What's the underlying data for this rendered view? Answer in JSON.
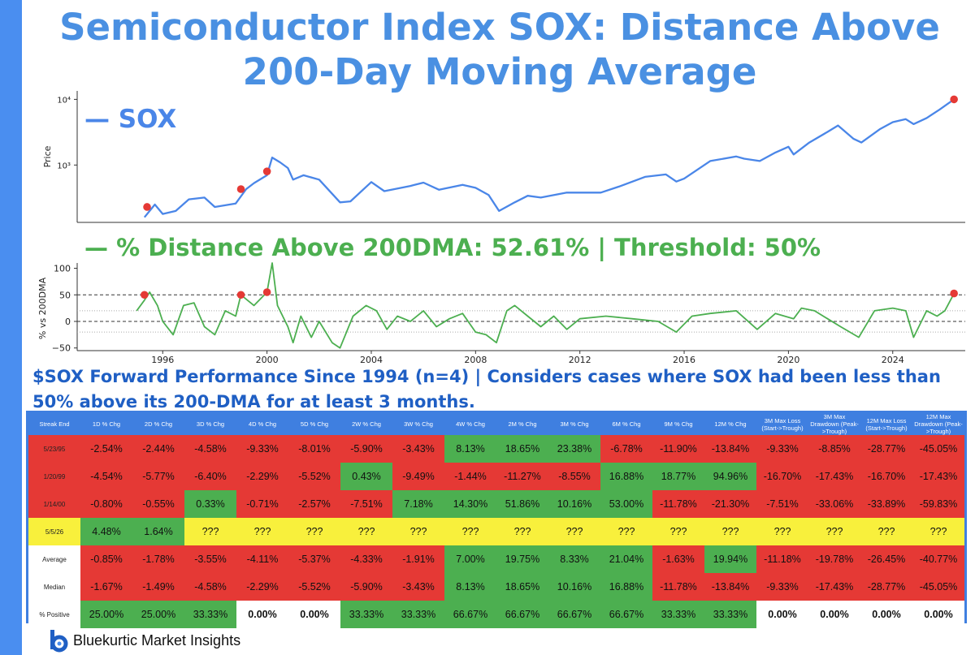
{
  "title": "Semiconductor Index SOX: Distance Above 200-Day Moving Average",
  "chart_data": [
    {
      "type": "line",
      "title": "",
      "ylabel": "Price",
      "yscale": "log",
      "ylim": [
        150,
        12000
      ],
      "ytick_labels": [
        "10³",
        "10⁴"
      ],
      "legend": "— SOX",
      "series": [
        {
          "name": "SOX",
          "color": "#4a86e8",
          "x": [
            1995.3,
            1995.7,
            1996.0,
            1996.5,
            1997.0,
            1997.6,
            1998.0,
            1998.8,
            1999.2,
            1999.5,
            2000.0,
            2000.2,
            2000.5,
            2000.8,
            2001.0,
            2001.4,
            2002.0,
            2002.8,
            2003.2,
            2004.0,
            2004.5,
            2005.5,
            2006.0,
            2006.6,
            2007.5,
            2008.0,
            2008.5,
            2008.9,
            2009.5,
            2010.0,
            2010.5,
            2011.5,
            2012.0,
            2012.8,
            2013.5,
            2014.5,
            2015.3,
            2015.7,
            2016.0,
            2017.0,
            2018.0,
            2018.3,
            2018.9,
            2019.5,
            2020.0,
            2020.2,
            2020.8,
            2021.5,
            2021.9,
            2022.5,
            2022.8,
            2023.5,
            2024.0,
            2024.5,
            2024.8,
            2025.3,
            2025.8,
            2026.35
          ],
          "values": [
            160,
            250,
            180,
            200,
            300,
            320,
            230,
            260,
            430,
            530,
            700,
            1300,
            1100,
            900,
            600,
            700,
            600,
            270,
            280,
            550,
            400,
            480,
            540,
            420,
            500,
            450,
            350,
            200,
            270,
            340,
            320,
            380,
            380,
            380,
            470,
            660,
            720,
            560,
            620,
            1150,
            1350,
            1250,
            1150,
            1550,
            1900,
            1450,
            2200,
            3200,
            4000,
            2500,
            2200,
            3500,
            4500,
            5000,
            4200,
            5200,
            7000,
            10000
          ]
        }
      ],
      "highlight_points": [
        {
          "x": 1995.4,
          "y": 230
        },
        {
          "x": 1999.0,
          "y": 430
        },
        {
          "x": 2000.0,
          "y": 800
        },
        {
          "x": 2026.35,
          "y": 10000
        }
      ]
    },
    {
      "type": "line",
      "title": "",
      "ylabel": "% vs 200DMA",
      "ylim": [
        -55,
        110
      ],
      "ytick_labels": [
        "100",
        "50",
        "0",
        "−50"
      ],
      "xtick_labels": [
        "1996",
        "2000",
        "2004",
        "2008",
        "2012",
        "2016",
        "2020",
        "2024"
      ],
      "legend": "— % Distance Above 200DMA: 52.61% | Threshold: 50%",
      "threshold": 50,
      "series": [
        {
          "name": "% Distance Above 200DMA",
          "color": "#4caf50",
          "x": [
            1995.0,
            1995.3,
            1995.5,
            1995.8,
            1996.0,
            1996.4,
            1996.8,
            1997.2,
            1997.6,
            1998.0,
            1998.4,
            1998.8,
            1999.0,
            1999.5,
            2000.0,
            2000.2,
            2000.4,
            2000.8,
            2001.0,
            2001.3,
            2001.7,
            2002.0,
            2002.5,
            2002.8,
            2003.3,
            2003.8,
            2004.2,
            2004.6,
            2005.0,
            2005.5,
            2006.0,
            2006.5,
            2007.0,
            2007.5,
            2008.0,
            2008.4,
            2008.8,
            2009.2,
            2009.5,
            2010.0,
            2010.5,
            2011.0,
            2011.5,
            2012.0,
            2013.0,
            2014.0,
            2015.0,
            2015.7,
            2016.3,
            2017.0,
            2018.0,
            2018.8,
            2019.5,
            2020.2,
            2020.5,
            2021.0,
            2021.5,
            2022.0,
            2022.7,
            2023.3,
            2024.0,
            2024.5,
            2024.8,
            2025.3,
            2025.7,
            2026.0,
            2026.35
          ],
          "values": [
            20,
            40,
            55,
            30,
            0,
            -25,
            30,
            35,
            -10,
            -25,
            20,
            10,
            50,
            30,
            55,
            110,
            30,
            -10,
            -40,
            10,
            -30,
            0,
            -40,
            -50,
            10,
            30,
            20,
            -15,
            10,
            0,
            20,
            -10,
            5,
            15,
            -20,
            -25,
            -40,
            20,
            30,
            10,
            -10,
            10,
            -15,
            5,
            10,
            5,
            0,
            -20,
            10,
            15,
            20,
            -15,
            15,
            5,
            25,
            20,
            5,
            -10,
            -30,
            20,
            25,
            20,
            -30,
            20,
            10,
            20,
            52.61
          ]
        }
      ],
      "highlight_points": [
        {
          "x": 1995.3,
          "y": 50
        },
        {
          "x": 1999.0,
          "y": 50
        },
        {
          "x": 2000.0,
          "y": 55
        },
        {
          "x": 2026.35,
          "y": 52.61
        }
      ]
    },
    {
      "type": "table",
      "title": "$SOX Forward Performance Since 1994 (n=4) | Considers cases where SOX had been less than 50% above its 200-DMA for at least 3 months.",
      "columns": [
        "Streak End",
        "1D % Chg",
        "2D % Chg",
        "3D % Chg",
        "4D % Chg",
        "5D % Chg",
        "2W % Chg",
        "3W % Chg",
        "4W % Chg",
        "2M % Chg",
        "3M % Chg",
        "6M % Chg",
        "9M % Chg",
        "12M % Chg",
        "3M Max Loss (Start->Trough)",
        "3M Max Drawdown (Peak->Trough)",
        "12M Max Loss (Start->Trough)",
        "12M Max Drawdown (Peak->Trough)"
      ],
      "rows": [
        {
          "label": "5/23/95",
          "cells": [
            {
              "v": "-2.54%",
              "c": "r"
            },
            {
              "v": "-2.44%",
              "c": "r"
            },
            {
              "v": "-4.58%",
              "c": "r"
            },
            {
              "v": "-9.33%",
              "c": "r"
            },
            {
              "v": "-8.01%",
              "c": "r"
            },
            {
              "v": "-5.90%",
              "c": "r"
            },
            {
              "v": "-3.43%",
              "c": "r"
            },
            {
              "v": "8.13%",
              "c": "g"
            },
            {
              "v": "18.65%",
              "c": "g"
            },
            {
              "v": "23.38%",
              "c": "g"
            },
            {
              "v": "-6.78%",
              "c": "r"
            },
            {
              "v": "-11.90%",
              "c": "r"
            },
            {
              "v": "-13.84%",
              "c": "r"
            },
            {
              "v": "-9.33%",
              "c": "r"
            },
            {
              "v": "-8.85%",
              "c": "r"
            },
            {
              "v": "-28.77%",
              "c": "r"
            },
            {
              "v": "-45.05%",
              "c": "r"
            }
          ]
        },
        {
          "label": "1/20/99",
          "cells": [
            {
              "v": "-4.54%",
              "c": "r"
            },
            {
              "v": "-5.77%",
              "c": "r"
            },
            {
              "v": "-6.40%",
              "c": "r"
            },
            {
              "v": "-2.29%",
              "c": "r"
            },
            {
              "v": "-5.52%",
              "c": "r"
            },
            {
              "v": "0.43%",
              "c": "g"
            },
            {
              "v": "-9.49%",
              "c": "r"
            },
            {
              "v": "-1.44%",
              "c": "r"
            },
            {
              "v": "-11.27%",
              "c": "r"
            },
            {
              "v": "-8.55%",
              "c": "r"
            },
            {
              "v": "16.88%",
              "c": "g"
            },
            {
              "v": "18.77%",
              "c": "g"
            },
            {
              "v": "94.96%",
              "c": "g"
            },
            {
              "v": "-16.70%",
              "c": "r"
            },
            {
              "v": "-17.43%",
              "c": "r"
            },
            {
              "v": "-16.70%",
              "c": "r"
            },
            {
              "v": "-17.43%",
              "c": "r"
            }
          ]
        },
        {
          "label": "1/14/00",
          "cells": [
            {
              "v": "-0.80%",
              "c": "r"
            },
            {
              "v": "-0.55%",
              "c": "r"
            },
            {
              "v": "0.33%",
              "c": "g"
            },
            {
              "v": "-0.71%",
              "c": "r"
            },
            {
              "v": "-2.57%",
              "c": "r"
            },
            {
              "v": "-7.51%",
              "c": "r"
            },
            {
              "v": "7.18%",
              "c": "g"
            },
            {
              "v": "14.30%",
              "c": "g"
            },
            {
              "v": "51.86%",
              "c": "g"
            },
            {
              "v": "10.16%",
              "c": "g"
            },
            {
              "v": "53.00%",
              "c": "g"
            },
            {
              "v": "-11.78%",
              "c": "r"
            },
            {
              "v": "-21.30%",
              "c": "r"
            },
            {
              "v": "-7.51%",
              "c": "r"
            },
            {
              "v": "-33.06%",
              "c": "r"
            },
            {
              "v": "-33.89%",
              "c": "r"
            },
            {
              "v": "-59.83%",
              "c": "r"
            }
          ]
        },
        {
          "label": "5/5/26",
          "cells": [
            {
              "v": "4.48%",
              "c": "g"
            },
            {
              "v": "1.64%",
              "c": "g"
            },
            {
              "v": "???",
              "c": "y"
            },
            {
              "v": "???",
              "c": "y"
            },
            {
              "v": "???",
              "c": "y"
            },
            {
              "v": "???",
              "c": "y"
            },
            {
              "v": "???",
              "c": "y"
            },
            {
              "v": "???",
              "c": "y"
            },
            {
              "v": "???",
              "c": "y"
            },
            {
              "v": "???",
              "c": "y"
            },
            {
              "v": "???",
              "c": "y"
            },
            {
              "v": "???",
              "c": "y"
            },
            {
              "v": "???",
              "c": "y"
            },
            {
              "v": "???",
              "c": "y"
            },
            {
              "v": "???",
              "c": "y"
            },
            {
              "v": "???",
              "c": "y"
            },
            {
              "v": "???",
              "c": "y"
            }
          ]
        },
        {
          "label": "Average",
          "cells": [
            {
              "v": "-0.85%",
              "c": "r"
            },
            {
              "v": "-1.78%",
              "c": "r"
            },
            {
              "v": "-3.55%",
              "c": "r"
            },
            {
              "v": "-4.11%",
              "c": "r"
            },
            {
              "v": "-5.37%",
              "c": "r"
            },
            {
              "v": "-4.33%",
              "c": "r"
            },
            {
              "v": "-1.91%",
              "c": "r"
            },
            {
              "v": "7.00%",
              "c": "g"
            },
            {
              "v": "19.75%",
              "c": "g"
            },
            {
              "v": "8.33%",
              "c": "g"
            },
            {
              "v": "21.04%",
              "c": "g"
            },
            {
              "v": "-1.63%",
              "c": "r"
            },
            {
              "v": "19.94%",
              "c": "g"
            },
            {
              "v": "-11.18%",
              "c": "r"
            },
            {
              "v": "-19.78%",
              "c": "r"
            },
            {
              "v": "-26.45%",
              "c": "r"
            },
            {
              "v": "-40.77%",
              "c": "r"
            }
          ]
        },
        {
          "label": "Median",
          "cells": [
            {
              "v": "-1.67%",
              "c": "r"
            },
            {
              "v": "-1.49%",
              "c": "r"
            },
            {
              "v": "-4.58%",
              "c": "r"
            },
            {
              "v": "-2.29%",
              "c": "r"
            },
            {
              "v": "-5.52%",
              "c": "r"
            },
            {
              "v": "-5.90%",
              "c": "r"
            },
            {
              "v": "-3.43%",
              "c": "r"
            },
            {
              "v": "8.13%",
              "c": "g"
            },
            {
              "v": "18.65%",
              "c": "g"
            },
            {
              "v": "10.16%",
              "c": "g"
            },
            {
              "v": "16.88%",
              "c": "g"
            },
            {
              "v": "-11.78%",
              "c": "r"
            },
            {
              "v": "-13.84%",
              "c": "r"
            },
            {
              "v": "-9.33%",
              "c": "r"
            },
            {
              "v": "-17.43%",
              "c": "r"
            },
            {
              "v": "-28.77%",
              "c": "r"
            },
            {
              "v": "-45.05%",
              "c": "r"
            }
          ]
        },
        {
          "label": "% Positive",
          "cells": [
            {
              "v": "25.00%",
              "c": "g"
            },
            {
              "v": "25.00%",
              "c": "g"
            },
            {
              "v": "33.33%",
              "c": "g"
            },
            {
              "v": "0.00%",
              "c": "w"
            },
            {
              "v": "0.00%",
              "c": "w"
            },
            {
              "v": "33.33%",
              "c": "g"
            },
            {
              "v": "33.33%",
              "c": "g"
            },
            {
              "v": "66.67%",
              "c": "g"
            },
            {
              "v": "66.67%",
              "c": "g"
            },
            {
              "v": "66.67%",
              "c": "g"
            },
            {
              "v": "66.67%",
              "c": "g"
            },
            {
              "v": "33.33%",
              "c": "g"
            },
            {
              "v": "33.33%",
              "c": "g"
            },
            {
              "v": "0.00%",
              "c": "w"
            },
            {
              "v": "0.00%",
              "c": "w"
            },
            {
              "v": "0.00%",
              "c": "w"
            },
            {
              "v": "0.00%",
              "c": "w"
            }
          ]
        }
      ]
    }
  ],
  "footer": {
    "brand": "Bluekurtic Market Insights",
    "logo_icon": "bluekurtic-logo-icon"
  }
}
